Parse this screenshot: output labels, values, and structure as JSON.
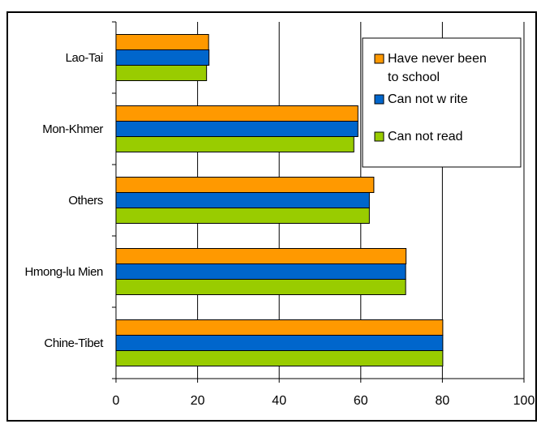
{
  "chart_data": {
    "type": "bar",
    "orientation": "horizontal",
    "title": "",
    "xlabel": "",
    "ylabel": "",
    "categories": [
      "Lao-Tai",
      "Mon-Khmer",
      "Others",
      "Hmong-lu Mien",
      "Chine-Tibet"
    ],
    "series": [
      {
        "name": "Have never been to school",
        "name_lines": [
          "Have never been",
          "to school"
        ],
        "color": "#ff9900",
        "values": [
          22.7,
          59.3,
          63.2,
          71.1,
          80.1
        ]
      },
      {
        "name": "Can not w rite",
        "name_lines": [
          "Can not w rite"
        ],
        "color": "#0066cc",
        "values": [
          22.8,
          59.3,
          62.1,
          71.0,
          80.1
        ]
      },
      {
        "name": "Can not read",
        "name_lines": [
          "Can not read"
        ],
        "color": "#99cc00",
        "values": [
          22.2,
          58.3,
          62.1,
          71.0,
          80.1
        ]
      }
    ],
    "xlim": [
      0,
      100
    ],
    "xticks": [
      0,
      20,
      40,
      60,
      80,
      100
    ],
    "grid": "vertical",
    "legend_position": "top-right"
  }
}
